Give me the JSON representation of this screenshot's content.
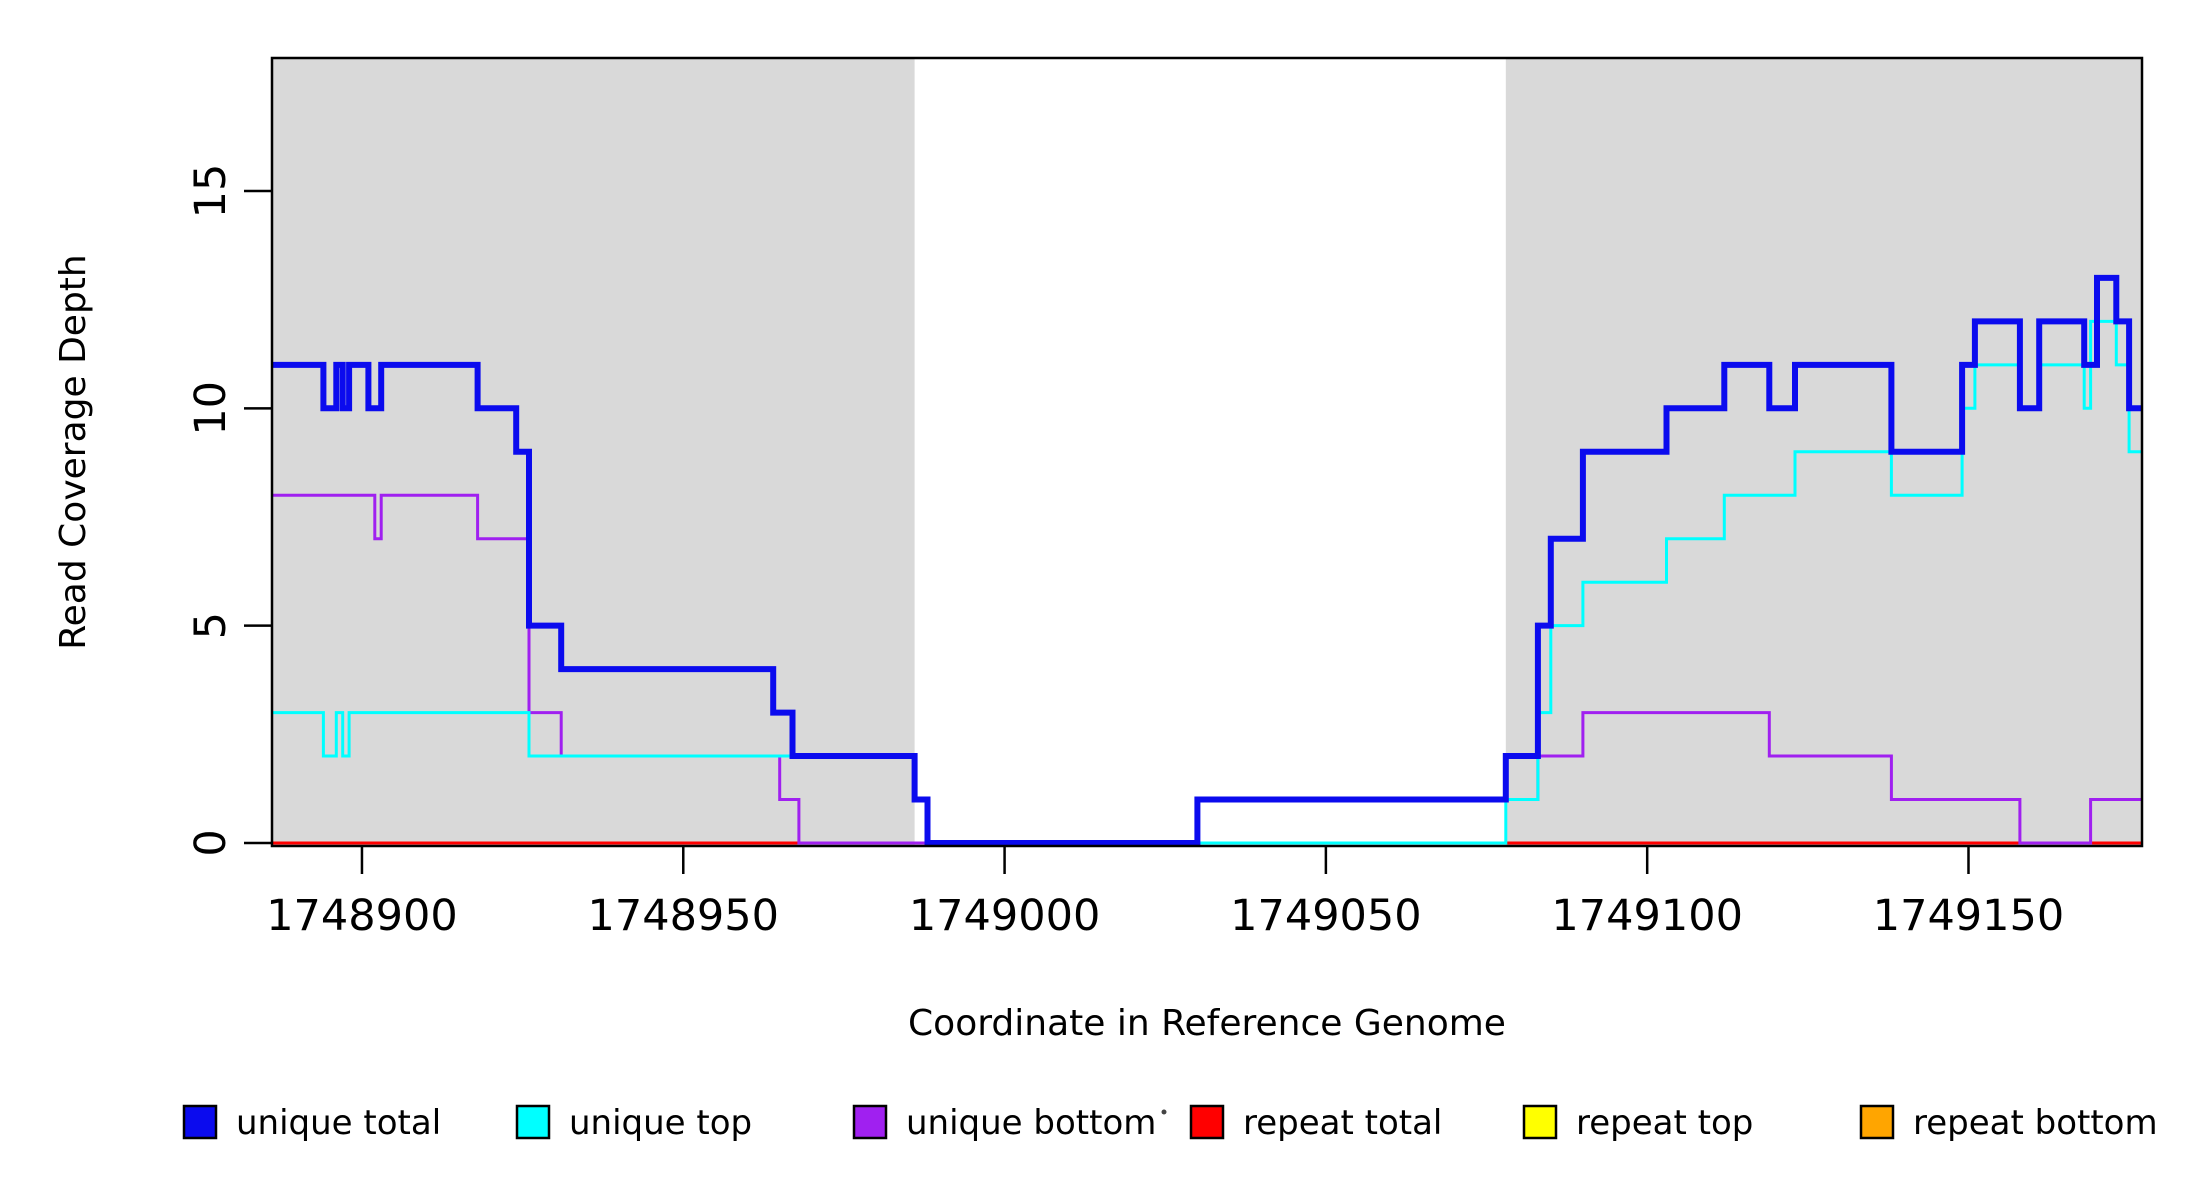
{
  "chart_data": {
    "type": "line",
    "subtype": "step-coverage",
    "xlabel": "Coordinate in Reference Genome",
    "ylabel": "Read Coverage Depth",
    "xlim": [
      1748886,
      1749177
    ],
    "ylim": [
      -0.07,
      18.06
    ],
    "x_ticks": [
      1748900,
      1748950,
      1749000,
      1749050,
      1749100,
      1749150
    ],
    "y_ticks": [
      0,
      5,
      10,
      15
    ],
    "grid": false,
    "background_color": "#ffffff",
    "shaded_region_color": "#d9d9d9",
    "shaded_regions": [
      {
        "name": "left-unique-region",
        "x0": 1748886,
        "x1": 1748986
      },
      {
        "name": "right-unique-region",
        "x0": 1749078,
        "x1": 1749177
      }
    ],
    "legend_position": "bottom",
    "series": [
      {
        "name": "repeat bottom",
        "color": "#ffa500",
        "width": 3,
        "steps": [
          [
            1748886,
            0
          ]
        ]
      },
      {
        "name": "repeat top",
        "color": "#ffff00",
        "width": 3,
        "steps": [
          [
            1748886,
            0
          ]
        ]
      },
      {
        "name": "repeat total",
        "color": "#ff0000",
        "width": 3,
        "steps": [
          [
            1748886,
            0
          ]
        ]
      },
      {
        "name": "unique bottom",
        "color": "#a020f0",
        "width": 3,
        "steps": [
          [
            1748886,
            8
          ],
          [
            1748902,
            7
          ],
          [
            1748903,
            8
          ],
          [
            1748918,
            7
          ],
          [
            1748926,
            3
          ],
          [
            1748931,
            2
          ],
          [
            1748965,
            1
          ],
          [
            1748968,
            0
          ],
          [
            1749030,
            1
          ],
          [
            1749083,
            2
          ],
          [
            1749090,
            3
          ],
          [
            1749119,
            2
          ],
          [
            1749138,
            1
          ],
          [
            1749158,
            0
          ],
          [
            1749169,
            1
          ]
        ]
      },
      {
        "name": "unique top",
        "color": "#00ffff",
        "width": 3,
        "steps": [
          [
            1748886,
            3
          ],
          [
            1748894,
            2
          ],
          [
            1748896,
            3
          ],
          [
            1748897,
            2
          ],
          [
            1748898,
            3
          ],
          [
            1748926,
            2
          ],
          [
            1748986,
            1
          ],
          [
            1748988,
            0
          ],
          [
            1749078,
            1
          ],
          [
            1749083,
            3
          ],
          [
            1749085,
            5
          ],
          [
            1749090,
            6
          ],
          [
            1749103,
            7
          ],
          [
            1749112,
            8
          ],
          [
            1749123,
            9
          ],
          [
            1749138,
            8
          ],
          [
            1749149,
            10
          ],
          [
            1749151,
            11
          ],
          [
            1749158,
            10
          ],
          [
            1749161,
            11
          ],
          [
            1749168,
            10
          ],
          [
            1749169,
            12
          ],
          [
            1749173,
            11
          ],
          [
            1749175,
            9
          ]
        ]
      },
      {
        "name": "unique total",
        "color": "#0b0bee",
        "width": 6,
        "steps": [
          [
            1748886,
            11
          ],
          [
            1748894,
            10
          ],
          [
            1748896,
            11
          ],
          [
            1748897,
            10
          ],
          [
            1748898,
            11
          ],
          [
            1748901,
            10
          ],
          [
            1748903,
            11
          ],
          [
            1748918,
            10
          ],
          [
            1748924,
            9
          ],
          [
            1748926,
            5
          ],
          [
            1748931,
            4
          ],
          [
            1748964,
            3
          ],
          [
            1748967,
            2
          ],
          [
            1748986,
            1
          ],
          [
            1748988,
            0
          ],
          [
            1749030,
            1
          ],
          [
            1749078,
            2
          ],
          [
            1749083,
            5
          ],
          [
            1749085,
            7
          ],
          [
            1749090,
            9
          ],
          [
            1749103,
            10
          ],
          [
            1749112,
            11
          ],
          [
            1749119,
            10
          ],
          [
            1749123,
            11
          ],
          [
            1749138,
            9
          ],
          [
            1749149,
            11
          ],
          [
            1749151,
            12
          ],
          [
            1749158,
            10
          ],
          [
            1749161,
            12
          ],
          [
            1749168,
            11
          ],
          [
            1749170,
            13
          ],
          [
            1749173,
            12
          ],
          [
            1749175,
            10
          ]
        ]
      }
    ],
    "legend": [
      {
        "label": "unique total",
        "color": "#0b0bee"
      },
      {
        "label": "unique top",
        "color": "#00ffff"
      },
      {
        "label": "unique bottom",
        "color": "#a020f0"
      },
      {
        "label": "repeat total",
        "color": "#ff0000"
      },
      {
        "label": "repeat top",
        "color": "#ffff00"
      },
      {
        "label": "repeat bottom",
        "color": "#ffa500"
      }
    ]
  }
}
